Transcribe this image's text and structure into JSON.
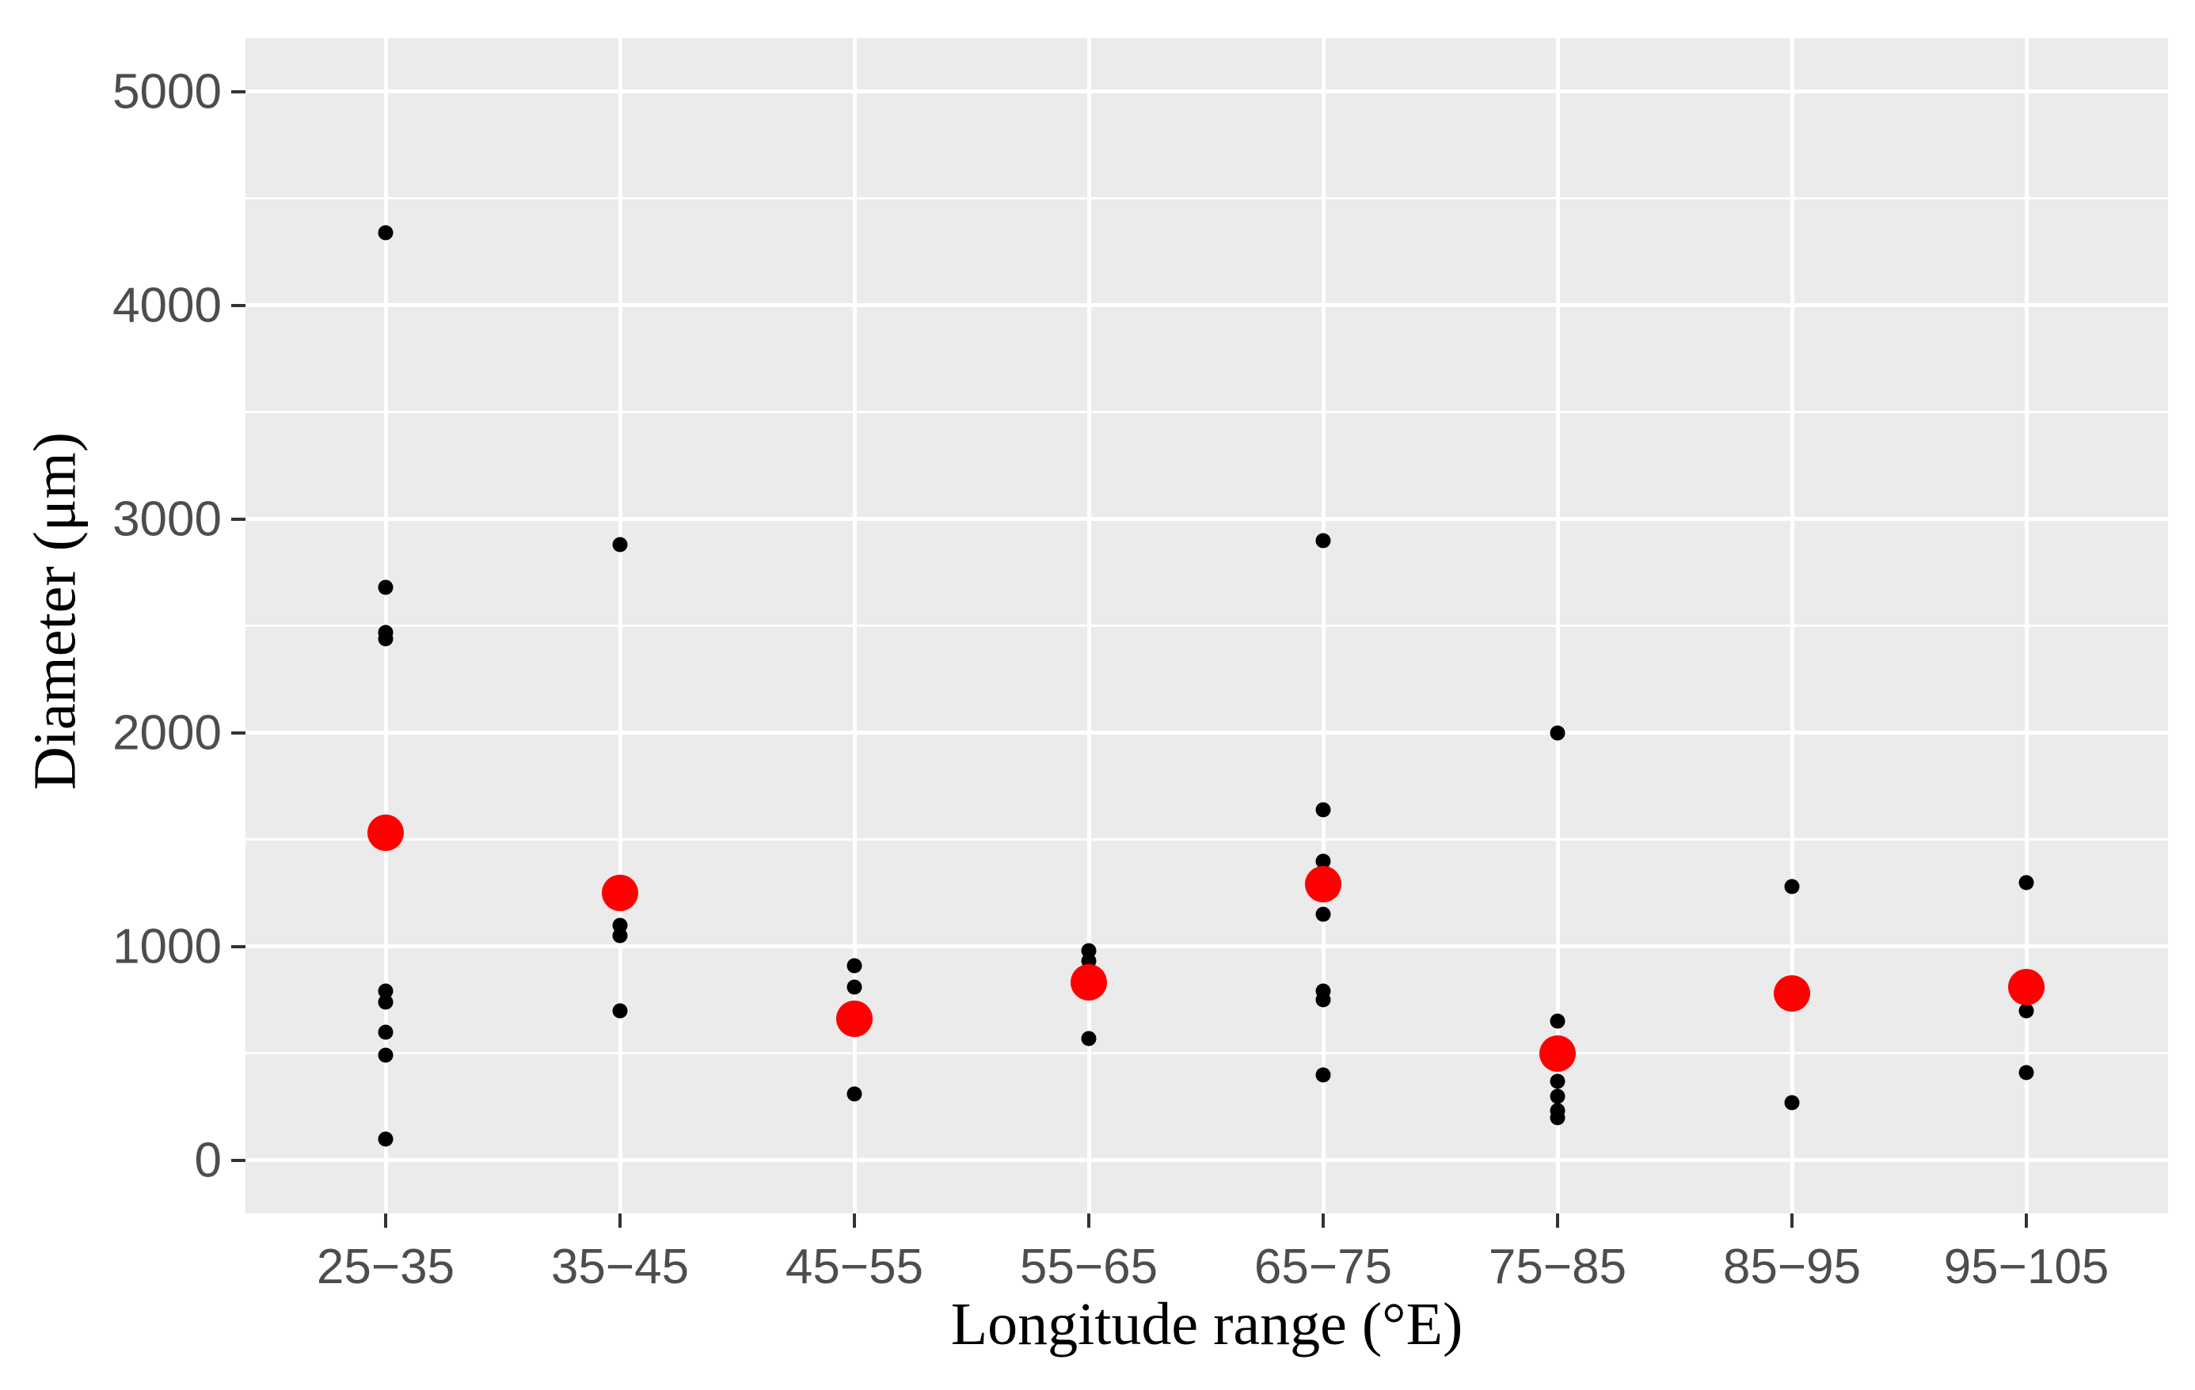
{
  "colors": {
    "panel_background": "#EBEBEB",
    "gridline": "#FFFFFF",
    "tick_mark": "#333333",
    "tick_label": "#4D4D4D",
    "axis_title": "#000000",
    "observation_point": "#000000",
    "mean_point": "#FF0000",
    "figure_background": "#FFFFFF"
  },
  "chart_data": {
    "type": "scatter",
    "title": "",
    "xlabel": "Longitude range (°E)",
    "ylabel": "Diameter (μm)",
    "categories": [
      "25−35",
      "35−45",
      "45−55",
      "55−65",
      "65−75",
      "75−85",
      "85−95",
      "95−105"
    ],
    "ylim": [
      0,
      5000
    ],
    "y_ticks": [
      0,
      1000,
      2000,
      3000,
      4000,
      5000
    ],
    "y_minor_ticks": [
      500,
      1500,
      2500,
      3500,
      4500
    ],
    "grid": "white major and minor horizontal lines, white vertical line at each category, on gray panel",
    "legend": "none",
    "series": [
      {
        "name": "observations",
        "type": "scatter",
        "color": "#000000",
        "marker_px": 19,
        "points_by_category": [
          [
            4340,
            2680,
            2470,
            2440,
            790,
            740,
            600,
            490,
            100
          ],
          [
            2880,
            1100,
            1050,
            700
          ],
          [
            910,
            810,
            310
          ],
          [
            980,
            930,
            570
          ],
          [
            2900,
            1640,
            1400,
            1150,
            790,
            750,
            400
          ],
          [
            2000,
            650,
            370,
            300,
            230,
            200
          ],
          [
            1280,
            270
          ],
          [
            1300,
            700,
            410
          ]
        ]
      },
      {
        "name": "means",
        "type": "scatter",
        "color": "#FF0000",
        "marker_px": 46,
        "values": [
          1530,
          1250,
          660,
          830,
          1290,
          500,
          780,
          810
        ]
      }
    ]
  }
}
